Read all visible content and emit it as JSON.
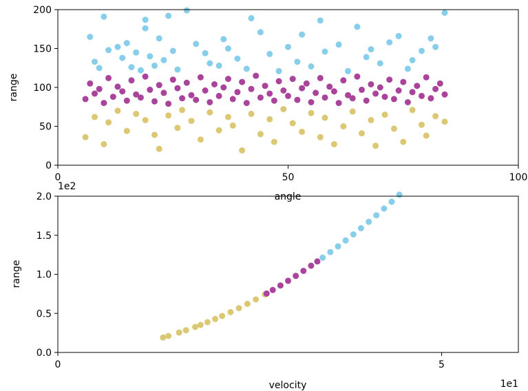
{
  "chart_data": [
    {
      "type": "scatter",
      "xlabel": "angle",
      "ylabel": "range",
      "xlim": [
        0,
        100
      ],
      "ylim": [
        0,
        200
      ],
      "x_ticks": [
        "0",
        "50",
        "100"
      ],
      "y_ticks": [
        "0",
        "50",
        "100",
        "150",
        "200"
      ],
      "grid": false,
      "colors": {
        "high": "#87ceeb",
        "mid": "#a9449a",
        "low": "#dcc872"
      },
      "series": [
        {
          "band": "high",
          "x": [
            7,
            8,
            9,
            10,
            11,
            13,
            14,
            15,
            16,
            17,
            18,
            19,
            19,
            20,
            21,
            22,
            23,
            24,
            25,
            26,
            28,
            30,
            32,
            33,
            35,
            36,
            37,
            39,
            41,
            42,
            44,
            46,
            48,
            50,
            52,
            53,
            55,
            57,
            58,
            61,
            63,
            65,
            67,
            68,
            70,
            72,
            74,
            76,
            77,
            79,
            81,
            82,
            84
          ],
          "y": [
            165,
            133,
            125,
            191,
            148,
            152,
            138,
            157,
            126,
            145,
            122,
            187,
            176,
            140,
            128,
            163,
            135,
            192,
            147,
            123,
            199,
            156,
            144,
            131,
            128,
            162,
            150,
            137,
            124,
            189,
            171,
            143,
            121,
            152,
            133,
            168,
            127,
            186,
            146,
            155,
            121,
            178,
            139,
            149,
            131,
            158,
            166,
            124,
            135,
            147,
            163,
            152,
            196
          ]
        },
        {
          "band": "mid",
          "x": [
            6,
            7,
            8,
            9,
            10,
            11,
            12,
            13,
            14,
            15,
            16,
            17,
            18,
            19,
            20,
            21,
            22,
            23,
            24,
            25,
            26,
            27,
            28,
            29,
            30,
            31,
            32,
            33,
            34,
            35,
            36,
            37,
            38,
            39,
            40,
            41,
            42,
            43,
            44,
            45,
            46,
            47,
            48,
            49,
            50,
            51,
            52,
            53,
            54,
            55,
            56,
            57,
            58,
            59,
            60,
            61,
            62,
            63,
            64,
            65,
            66,
            67,
            68,
            69,
            70,
            71,
            72,
            73,
            74,
            75,
            76,
            77,
            78,
            79,
            80,
            81,
            82,
            83,
            84
          ],
          "y": [
            85,
            105,
            92,
            98,
            80,
            112,
            88,
            101,
            95,
            83,
            109,
            91,
            87,
            114,
            97,
            82,
            103,
            93,
            79,
            110,
            99,
            86,
            106,
            90,
            84,
            113,
            96,
            81,
            104,
            89,
            100,
            111,
            85,
            94,
            107,
            80,
            98,
            115,
            87,
            102,
            92,
            83,
            108,
            96,
            89,
            111,
            84,
            99,
            105,
            81,
            93,
            112,
            87,
            101,
            95,
            80,
            109,
            90,
            86,
            114,
            97,
            83,
            104,
            92,
            100,
            88,
            110,
            85,
            96,
            107,
            81,
            94,
            102,
            89,
            113,
            86,
            98,
            105,
            91
          ]
        },
        {
          "band": "low",
          "x": [
            6,
            8,
            10,
            11,
            13,
            15,
            17,
            19,
            21,
            22,
            24,
            26,
            27,
            29,
            31,
            33,
            35,
            37,
            38,
            40,
            42,
            44,
            46,
            47,
            49,
            51,
            53,
            55,
            57,
            58,
            60,
            62,
            64,
            66,
            68,
            69,
            71,
            73,
            75,
            77,
            79,
            80,
            82,
            84
          ],
          "y": [
            36,
            62,
            27,
            55,
            70,
            44,
            66,
            58,
            39,
            21,
            64,
            48,
            71,
            57,
            33,
            68,
            45,
            62,
            51,
            19,
            66,
            40,
            59,
            30,
            72,
            54,
            43,
            67,
            36,
            61,
            27,
            50,
            69,
            41,
            58,
            25,
            65,
            47,
            30,
            71,
            52,
            38,
            63,
            56
          ]
        }
      ]
    },
    {
      "type": "scatter",
      "xlabel": "velocity",
      "ylabel": "range",
      "xlim": [
        0,
        6
      ],
      "ylim": [
        0,
        2
      ],
      "x_ticks": [
        "0",
        "5"
      ],
      "y_ticks": [
        "0.0",
        "0.5",
        "1.0",
        "1.5",
        "2.0"
      ],
      "x_offset_text": "1e1",
      "y_offset_text": "1e2",
      "grid": false,
      "colors": {
        "high": "#87ceeb",
        "mid": "#a9449a",
        "low": "#dcc872"
      },
      "curve_x": [
        1.37,
        1.44,
        1.58,
        1.67,
        1.79,
        1.86,
        1.95,
        2.05,
        2.14,
        2.25,
        2.36,
        2.47,
        2.58,
        2.7,
        2.72,
        2.8,
        2.9,
        3.0,
        3.1,
        3.2,
        3.3,
        3.38,
        3.45,
        3.55,
        3.65,
        3.75,
        3.85,
        3.95,
        4.05,
        4.15,
        4.25,
        4.35,
        4.45
      ],
      "series": [
        {
          "band": "low",
          "x": [
            1.37,
            1.44,
            1.58,
            1.67,
            1.79,
            1.86,
            1.95,
            2.05,
            2.14,
            2.25,
            2.36,
            2.47,
            2.58,
            2.7
          ]
        },
        {
          "band": "mid",
          "x": [
            2.72,
            2.8,
            2.9,
            3.0,
            3.1,
            3.2,
            3.3,
            3.38
          ]
        },
        {
          "band": "high",
          "x": [
            3.45,
            3.55,
            3.65,
            3.75,
            3.85,
            3.95,
            4.05,
            4.15,
            4.25,
            4.35,
            4.45
          ]
        }
      ]
    }
  ]
}
